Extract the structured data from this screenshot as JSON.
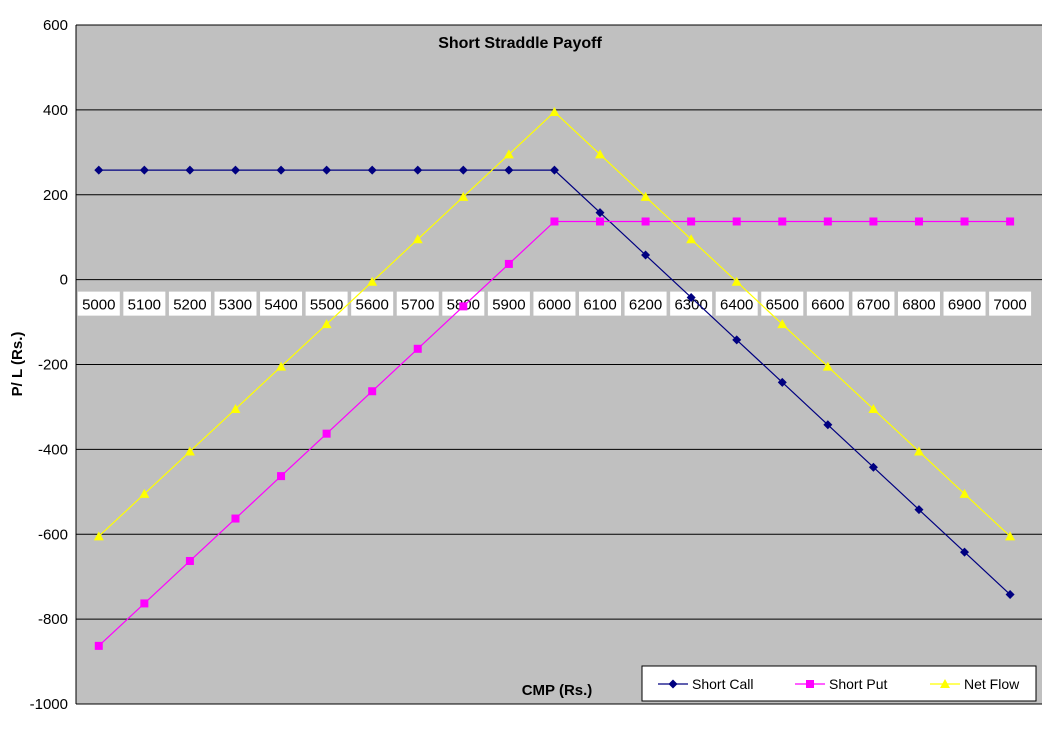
{
  "chart_data": {
    "type": "line",
    "title": "Short Straddle Payoff",
    "xlabel": "CMP (Rs.)",
    "ylabel": "P/ L (Rs.)",
    "ylim": [
      -1000,
      600
    ],
    "yticks": [
      600,
      400,
      200,
      0,
      -200,
      -400,
      -600,
      -800,
      -1000
    ],
    "ytick_labels": [
      "600",
      "400",
      "200",
      "0",
      "-200",
      "-400",
      "-600",
      "-800",
      "-1000"
    ],
    "categories": [
      "5000",
      "5100",
      "5200",
      "5300",
      "5400",
      "5500",
      "5600",
      "5700",
      "5800",
      "5900",
      "6000",
      "6100",
      "6200",
      "6300",
      "6400",
      "6500",
      "6600",
      "6700",
      "6800",
      "6900",
      "7000"
    ],
    "grid": true,
    "legend_position": "bottom-right",
    "series": [
      {
        "name": "Short Call",
        "color": "#000080",
        "marker": "diamond",
        "values": [
          258,
          258,
          258,
          258,
          258,
          258,
          258,
          258,
          258,
          258,
          258,
          158,
          58,
          -42,
          -142,
          -242,
          -342,
          -442,
          -542,
          -642,
          -742
        ]
      },
      {
        "name": "Short Put",
        "color": "#ff00ff",
        "marker": "square",
        "values": [
          -863,
          -763,
          -663,
          -563,
          -463,
          -363,
          -263,
          -163,
          -63,
          37,
          137,
          137,
          137,
          137,
          137,
          137,
          137,
          137,
          137,
          137,
          137
        ]
      },
      {
        "name": "Net Flow",
        "color": "#ffff00",
        "marker": "triangle",
        "values": [
          -605,
          -505,
          -405,
          -305,
          -205,
          -105,
          -5,
          95,
          195,
          295,
          395,
          295,
          195,
          95,
          -5,
          -105,
          -205,
          -305,
          -405,
          -505,
          -605
        ]
      }
    ]
  }
}
